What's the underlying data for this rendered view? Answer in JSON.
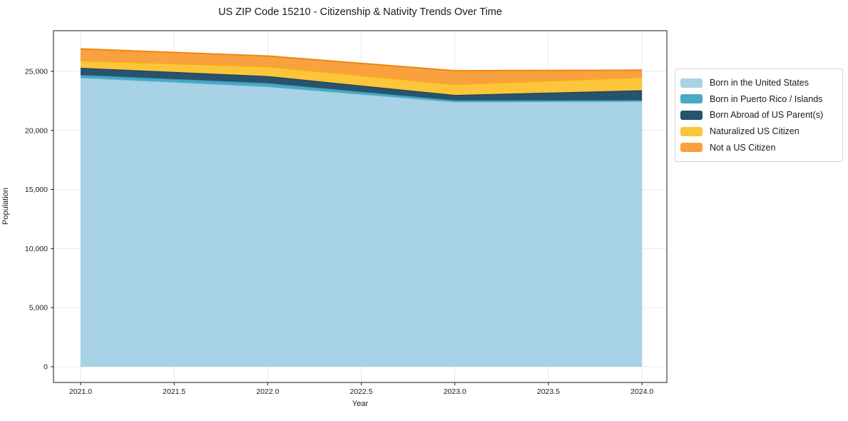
{
  "page": {
    "title": "US ZIP Code 15210 - Citizenship & Nativity Trends Over Time"
  },
  "chart_data": {
    "type": "area",
    "stacked": true,
    "title": "US ZIP Code 15210 - Citizenship & Nativity Trends Over Time",
    "xlabel": "Year",
    "ylabel": "Population",
    "x": [
      2021,
      2022,
      2023,
      2024
    ],
    "series": [
      {
        "name": "Born in the United States",
        "values": [
          24450,
          23700,
          22400,
          22450
        ],
        "fill": "#a8d2e6",
        "edge": "#8ec6dd"
      },
      {
        "name": "Born in Puerto Rico / Islands",
        "values": [
          250,
          300,
          150,
          100
        ],
        "fill": "#48a9c5",
        "edge": "#3796b4"
      },
      {
        "name": "Born Abroad of US Parent(s)",
        "values": [
          600,
          600,
          450,
          850
        ],
        "fill": "#27536d",
        "edge": "#1c4156"
      },
      {
        "name": "Naturalized US Citizen",
        "values": [
          600,
          800,
          900,
          1100
        ],
        "fill": "#fdc53a",
        "edge": "#f4ad0e"
      },
      {
        "name": "Not a US Citizen",
        "values": [
          1000,
          900,
          1150,
          600
        ],
        "fill": "#f9a13e",
        "edge": "#ee8612"
      }
    ],
    "totals": [
      26900,
      26300,
      25050,
      25100
    ],
    "xlim": [
      2020.855,
      2024.133
    ],
    "ylim": [
      -1330,
      28440
    ],
    "xticks": [
      2021.0,
      2021.5,
      2022.0,
      2022.5,
      2023.0,
      2023.5,
      2024.0
    ],
    "xtick_labels": [
      "2021.0",
      "2021.5",
      "2022.0",
      "2022.5",
      "2023.0",
      "2023.5",
      "2024.0"
    ],
    "yticks": [
      0,
      5000,
      10000,
      15000,
      20000,
      25000
    ],
    "ytick_labels": [
      "0",
      "5,000",
      "10,000",
      "15,000",
      "20,000",
      "25,000"
    ],
    "grid": true,
    "legend_position": "outside right"
  },
  "colors": {
    "background": "#ffffff",
    "grid": "#e9e9e9",
    "spine": "#1a1a1a",
    "text": "#1a1a1a",
    "legend_border": "#d4d4d4"
  }
}
